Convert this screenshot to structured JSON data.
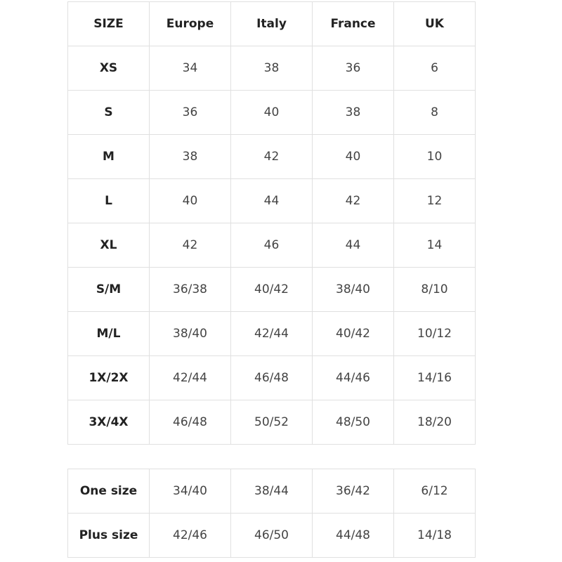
{
  "size_table": {
    "headers": [
      "SIZE",
      "Europe",
      "Italy",
      "France",
      "UK"
    ],
    "rows": [
      [
        "XS",
        "34",
        "38",
        "36",
        "6"
      ],
      [
        "S",
        "36",
        "40",
        "38",
        "8"
      ],
      [
        "M",
        "38",
        "42",
        "40",
        "10"
      ],
      [
        "L",
        "40",
        "44",
        "42",
        "12"
      ],
      [
        "XL",
        "42",
        "46",
        "44",
        "14"
      ],
      [
        "S/M",
        "36/38",
        "40/42",
        "38/40",
        "8/10"
      ],
      [
        "M/L",
        "38/40",
        "42/44",
        "40/42",
        "10/12"
      ],
      [
        "1X/2X",
        "42/44",
        "46/48",
        "44/46",
        "14/16"
      ],
      [
        "3X/4X",
        "46/48",
        "50/52",
        "48/50",
        "18/20"
      ]
    ]
  },
  "range_table": {
    "rows": [
      [
        "One size",
        "34/40",
        "38/44",
        "36/42",
        "6/12"
      ],
      [
        "Plus size",
        "42/46",
        "46/50",
        "44/48",
        "14/18"
      ]
    ]
  }
}
